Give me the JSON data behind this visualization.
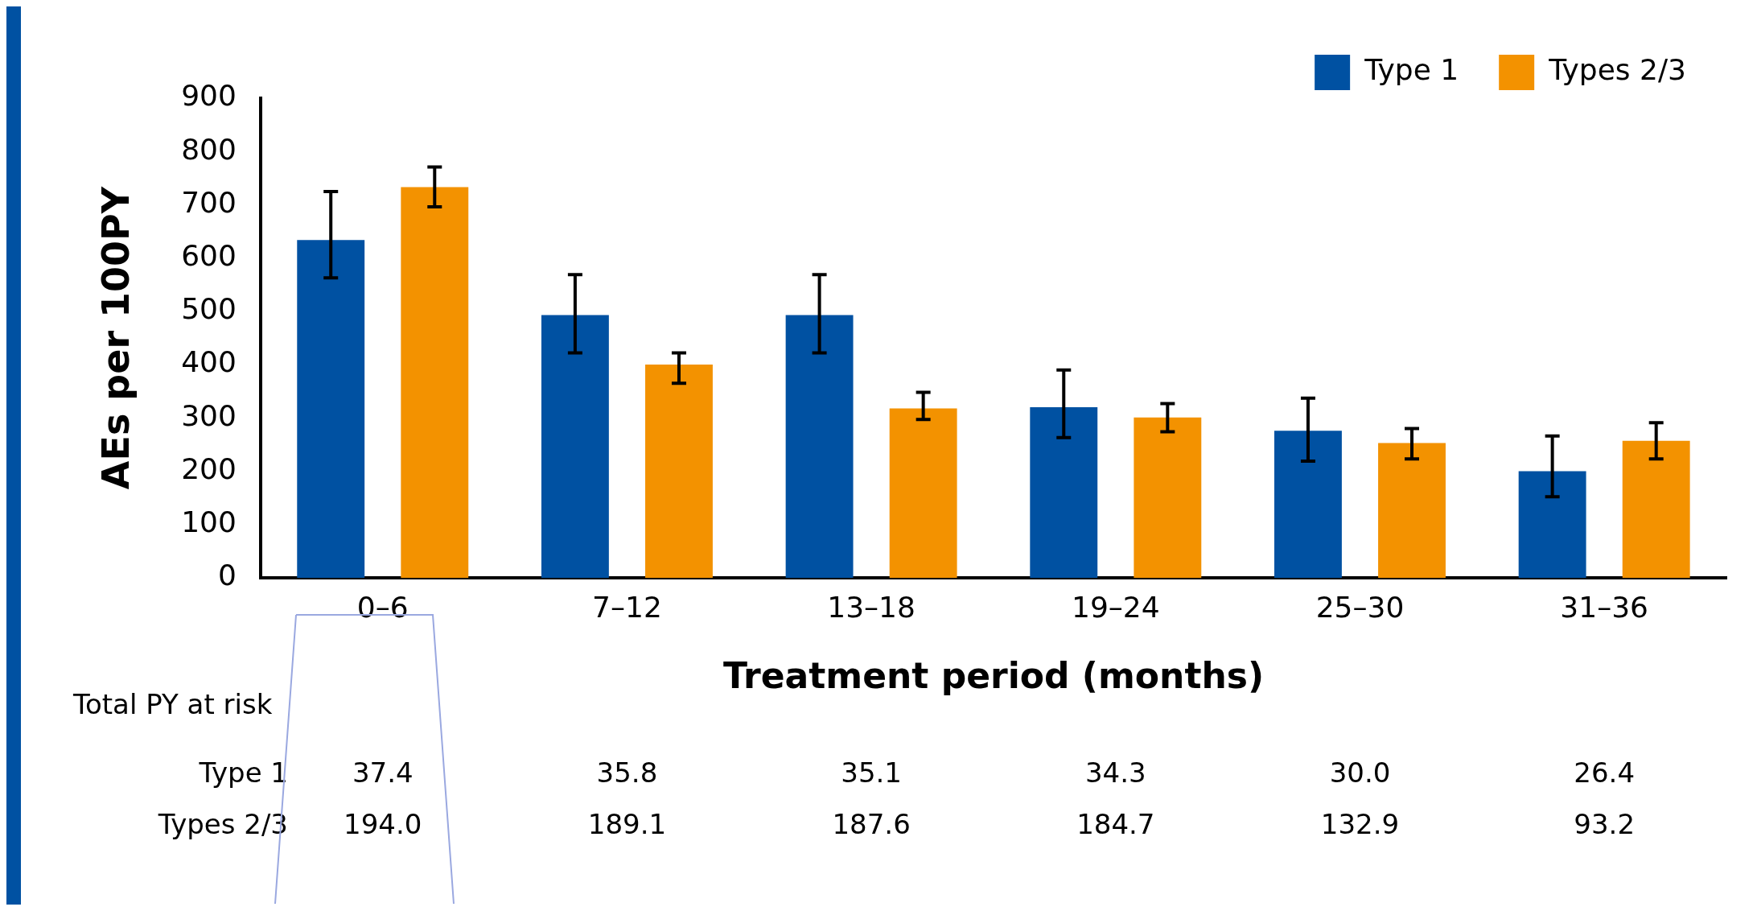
{
  "chart_data": {
    "type": "bar",
    "xlabel": "Treatment period (months)",
    "ylabel": "AEs per 100PY",
    "categories": [
      "0–6",
      "7–12",
      "13–18",
      "19–24",
      "25–30",
      "31–36"
    ],
    "series": [
      {
        "name": "Type 1",
        "color": "#0051a2",
        "values": [
          634,
          493,
          493,
          320,
          276,
          200
        ],
        "errors": [
          [
            563,
            725
          ],
          [
            422,
            569
          ],
          [
            422,
            569
          ],
          [
            263,
            390
          ],
          [
            219,
            337
          ],
          [
            152,
            266
          ]
        ]
      },
      {
        "name": "Types 2/3",
        "color": "#f39200",
        "values": [
          733,
          400,
          318,
          301,
          253,
          257
        ],
        "errors": [
          [
            696,
            771
          ],
          [
            365,
            422
          ],
          [
            297,
            348
          ],
          [
            274,
            327
          ],
          [
            223,
            280
          ],
          [
            223,
            291
          ]
        ]
      }
    ],
    "ylim": [
      0,
      900
    ],
    "yticks": [
      0,
      100,
      200,
      300,
      400,
      500,
      600,
      700,
      800,
      900
    ],
    "grid": false,
    "legend": "top right",
    "annotations": [
      "Total PY at risk",
      "Type 1",
      "37.4",
      "35.8",
      "35.1",
      "34.3",
      "30.0",
      "26.4",
      "Types 2/3",
      "194.0",
      "189.1",
      "187.6",
      "184.7",
      "132.9",
      "93.2"
    ]
  }
}
